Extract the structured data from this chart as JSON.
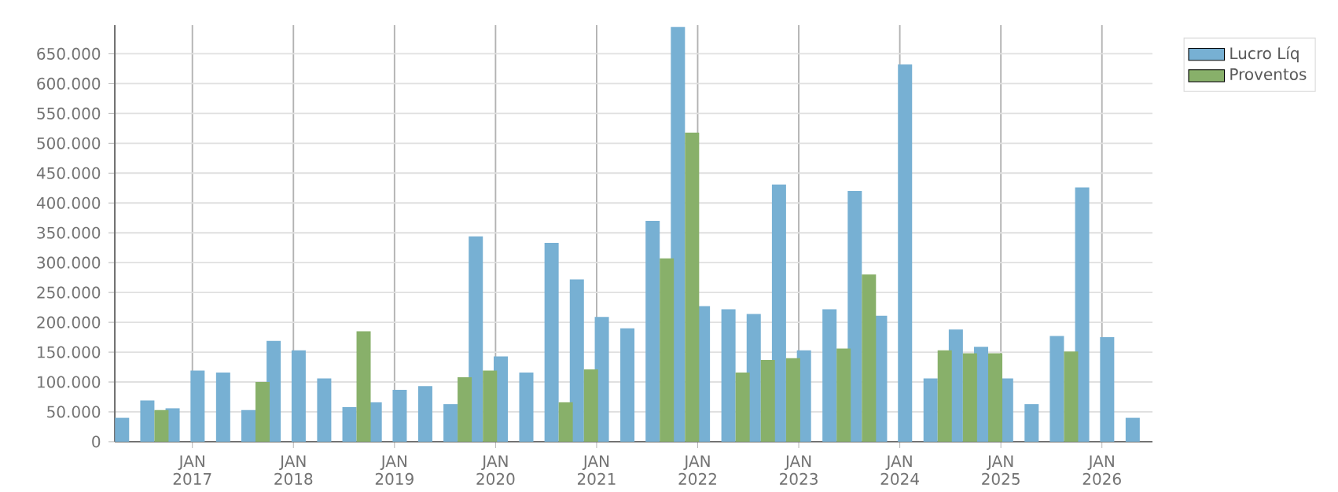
{
  "chart_data": {
    "type": "bar",
    "x": [
      "2016-05-16",
      "2016-08-16",
      "2016-11-16",
      "2017-02-15",
      "2017-05-16",
      "2017-08-16",
      "2017-11-16",
      "2018-02-15",
      "2018-05-16",
      "2018-08-16",
      "2018-11-16",
      "2019-02-15",
      "2019-05-16",
      "2019-08-16",
      "2019-11-16",
      "2020-02-15",
      "2020-05-16",
      "2020-08-16",
      "2020-11-16",
      "2021-02-15",
      "2021-05-16",
      "2021-08-16",
      "2021-11-16",
      "2022-02-15",
      "2022-05-16",
      "2022-08-16",
      "2022-11-16",
      "2023-02-15",
      "2023-05-16",
      "2023-08-16",
      "2023-11-16",
      "2024-02-15",
      "2024-05-16",
      "2024-08-16",
      "2024-11-16",
      "2025-02-15",
      "2025-05-16",
      "2025-08-16",
      "2025-11-16",
      "2026-02-15",
      "2026-05-16"
    ],
    "series": [
      {
        "name": "Lucro Líq",
        "color": "#77b0d3",
        "values": [
          40000,
          69000,
          56000,
          119000,
          116000,
          53000,
          169000,
          153000,
          106000,
          58000,
          66000,
          87000,
          93000,
          63000,
          344000,
          143000,
          116000,
          333000,
          272000,
          209000,
          190000,
          370000,
          695000,
          227000,
          222000,
          214000,
          431000,
          153000,
          222000,
          420000,
          211000,
          632000,
          106000,
          188000,
          159000,
          106000,
          63000,
          177000,
          426000,
          175000,
          40000
        ]
      },
      {
        "name": "Proventos",
        "color": "#88b06a",
        "values": [
          null,
          53000,
          null,
          null,
          null,
          100000,
          null,
          null,
          null,
          185000,
          null,
          null,
          null,
          108000,
          119000,
          null,
          null,
          66000,
          121000,
          null,
          null,
          307000,
          518000,
          null,
          116000,
          137000,
          140000,
          null,
          156000,
          280000,
          null,
          null,
          153000,
          148000,
          148000,
          null,
          null,
          151000,
          null,
          null,
          null
        ]
      }
    ],
    "xlim": [
      "2016-03-25",
      "2026-07-01"
    ],
    "xticks": [
      {
        "value": "2017-01-01",
        "label": "JAN 2017"
      },
      {
        "value": "2018-01-01",
        "label": "JAN 2018"
      },
      {
        "value": "2019-01-01",
        "label": "JAN 2019"
      },
      {
        "value": "2020-01-01",
        "label": "JAN 2020"
      },
      {
        "value": "2021-01-01",
        "label": "JAN 2021"
      },
      {
        "value": "2022-01-01",
        "label": "JAN 2022"
      },
      {
        "value": "2023-01-01",
        "label": "JAN 2023"
      },
      {
        "value": "2024-01-01",
        "label": "JAN 2024"
      },
      {
        "value": "2025-01-01",
        "label": "JAN 2025"
      },
      {
        "value": "2026-01-01",
        "label": "JAN 2026"
      }
    ],
    "ylim": [
      0,
      698000
    ],
    "yticks": [
      0,
      {
        "value": 50000,
        "label": "50.000"
      },
      {
        "value": 100000,
        "label": "100.000"
      },
      {
        "value": 150000,
        "label": "150.000"
      },
      {
        "value": 200000,
        "label": "200.000"
      },
      {
        "value": 250000,
        "label": "250.000"
      },
      {
        "value": 300000,
        "label": "300.000"
      },
      {
        "value": 350000,
        "label": "350.000"
      },
      {
        "value": 400000,
        "label": "400.000"
      },
      {
        "value": 450000,
        "label": "450.000"
      },
      {
        "value": 500000,
        "label": "500.000"
      },
      {
        "value": 550000,
        "label": "550.000"
      },
      {
        "value": 600000,
        "label": "600.000"
      },
      {
        "value": 650000,
        "label": "650.000"
      }
    ],
    "grid": true,
    "legend": "top right"
  }
}
